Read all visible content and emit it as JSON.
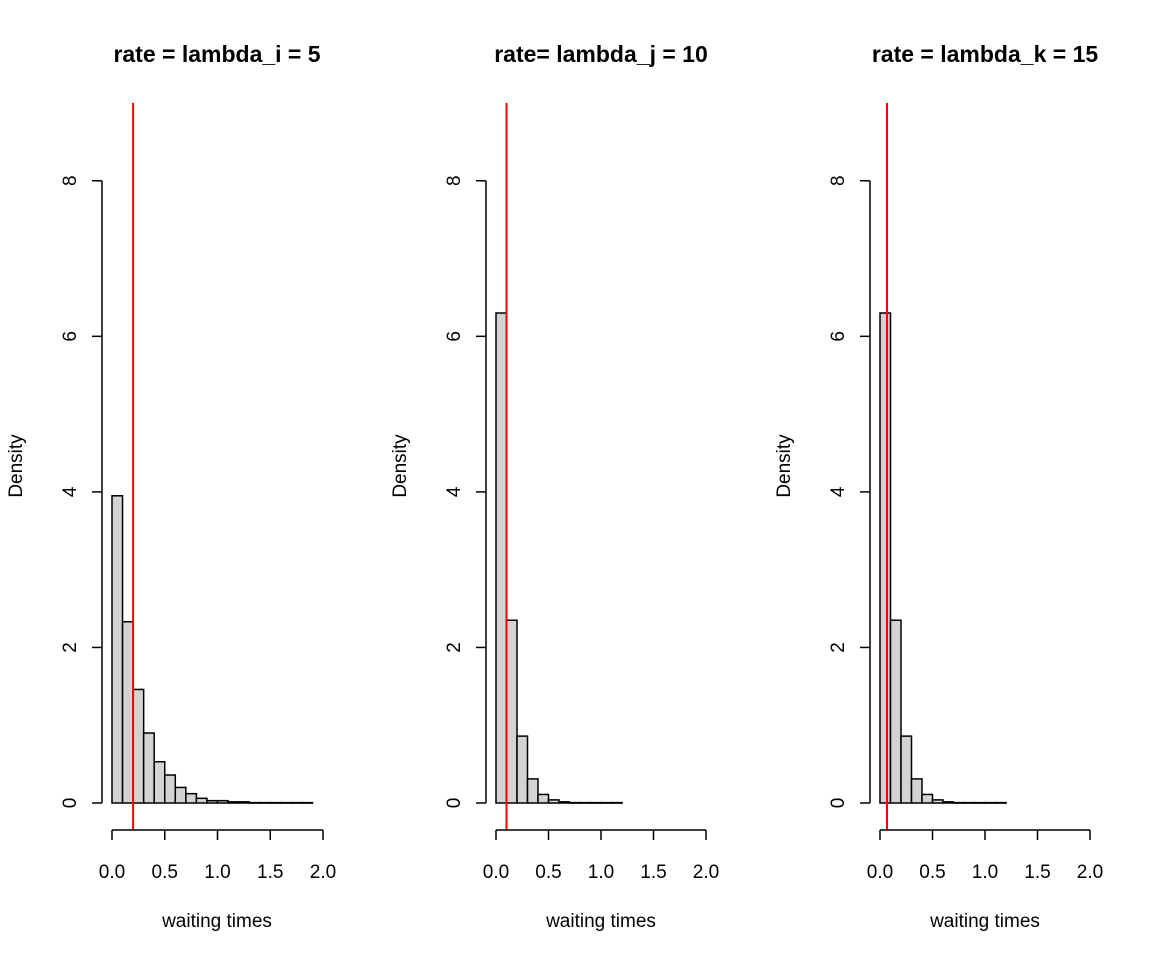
{
  "chart_data": [
    {
      "type": "histogram",
      "title": "rate = lambda_i = 5",
      "xlabel": "waiting times",
      "ylabel": "Density",
      "xlim": [
        0,
        2
      ],
      "ylim": [
        0,
        9
      ],
      "x_ticks": [
        "0.0",
        "0.5",
        "1.0",
        "1.5",
        "2.0"
      ],
      "y_ticks": [
        "0",
        "2",
        "4",
        "6",
        "8"
      ],
      "bin_width": 0.1,
      "bin_start": 0,
      "values": [
        3.95,
        2.33,
        1.46,
        0.9,
        0.53,
        0.36,
        0.2,
        0.12,
        0.06,
        0.03,
        0.03,
        0.015,
        0.015,
        0.005,
        0.005,
        0.005,
        0.005,
        0.005,
        0.005
      ],
      "vline": {
        "x": 0.2,
        "color": "#ff0000"
      },
      "bar_fill": "#d3d3d3",
      "grid": false
    },
    {
      "type": "histogram",
      "title": "rate= lambda_j = 10",
      "xlabel": "waiting times",
      "ylabel": "Density",
      "xlim": [
        0,
        2
      ],
      "ylim": [
        0,
        9
      ],
      "x_ticks": [
        "0.0",
        "0.5",
        "1.0",
        "1.5",
        "2.0"
      ],
      "y_ticks": [
        "0",
        "2",
        "4",
        "6",
        "8"
      ],
      "bin_width": 0.1,
      "bin_start": 0,
      "values": [
        6.3,
        2.35,
        0.86,
        0.31,
        0.11,
        0.04,
        0.015,
        0.005,
        0.005,
        0.005,
        0.005,
        0.005
      ],
      "vline": {
        "x": 0.1,
        "color": "#ff0000"
      },
      "bar_fill": "#d3d3d3",
      "grid": false
    },
    {
      "type": "histogram",
      "title": "rate = lambda_k = 15",
      "xlabel": "waiting times",
      "ylabel": "Density",
      "xlim": [
        0,
        2
      ],
      "ylim": [
        0,
        9
      ],
      "x_ticks": [
        "0.0",
        "0.5",
        "1.0",
        "1.5",
        "2.0"
      ],
      "y_ticks": [
        "0",
        "2",
        "4",
        "6",
        "8"
      ],
      "bin_width": 0.1,
      "bin_start": 0,
      "values": [
        6.3,
        2.35,
        0.86,
        0.31,
        0.11,
        0.04,
        0.015,
        0.005,
        0.005,
        0.005,
        0.005,
        0.005
      ],
      "vline": {
        "x": 0.0667,
        "color": "#ff0000"
      },
      "bar_fill": "#d3d3d3",
      "grid": false
    }
  ]
}
